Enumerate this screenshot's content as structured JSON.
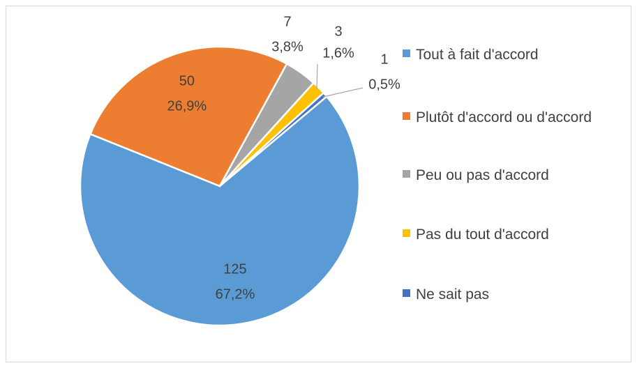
{
  "chart_data": {
    "type": "pie",
    "categories": [
      "Tout à fait d'accord",
      "Plutôt d'accord ou d'accord",
      "Peu ou pas d'accord",
      "Pas du tout d'accord",
      "Ne sait pas"
    ],
    "values": [
      125,
      50,
      7,
      3,
      1
    ],
    "percent_labels": [
      "67,2%",
      "26,9%",
      "3,8%",
      "1,6%",
      "0,5%"
    ],
    "colors": [
      "#5b9bd5",
      "#ed7d31",
      "#a5a5a5",
      "#ffc000",
      "#4472c4"
    ],
    "start_angle": 50,
    "legend": "right"
  }
}
